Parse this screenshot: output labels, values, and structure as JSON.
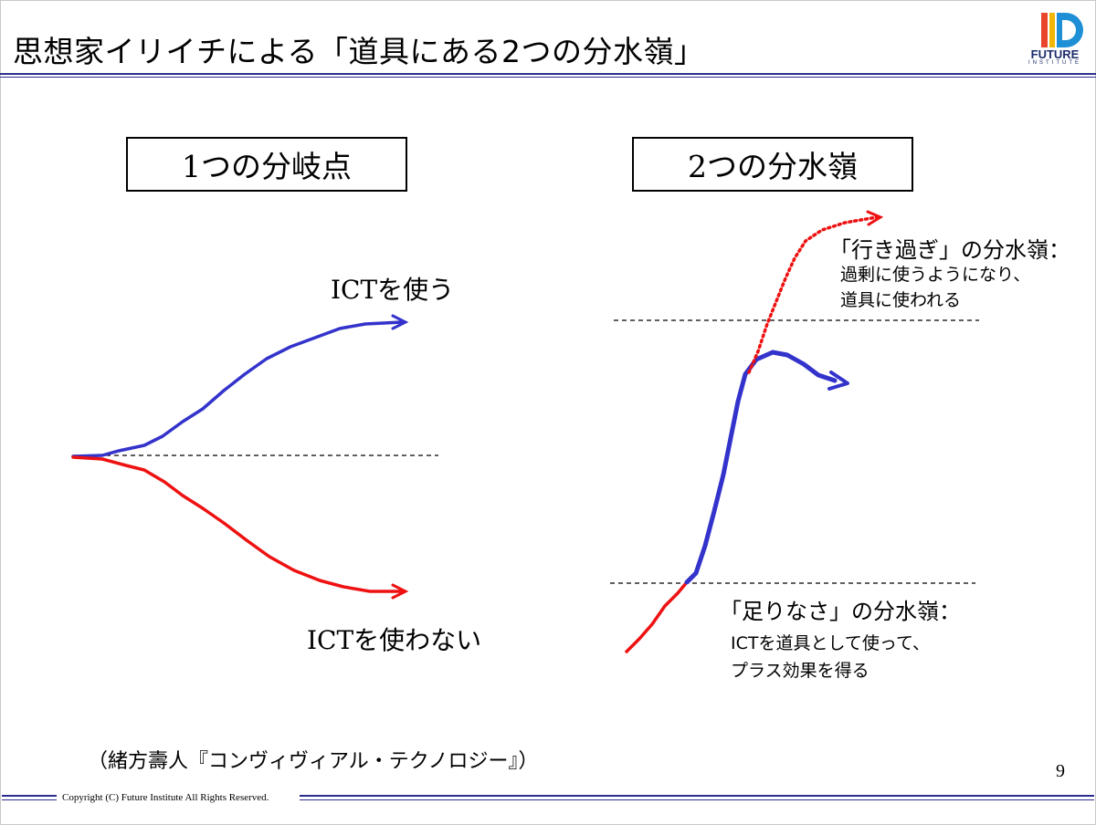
{
  "title": "思想家イリイチによる「道具にある2つの分水嶺」",
  "logo": {
    "word": "FUTURE",
    "sub": "INSTITUTE"
  },
  "left_panel": {
    "box_label": "1つの分岐点",
    "upper_label": "ICTを使う",
    "lower_label": "ICTを使わない"
  },
  "right_panel": {
    "box_label": "2つの分水嶺",
    "upper_heading": "「行き過ぎ」の分水嶺：",
    "upper_line1": "過剰に使うようになり、",
    "upper_line2": "道具に使われる",
    "lower_heading": "「足りなさ」の分水嶺：",
    "lower_line1": "ICTを道具として使って、",
    "lower_line2": "プラス効果を得る"
  },
  "source": "（緒方壽人『コンヴィヴィアル・テクノロジー』）",
  "page_number": "9",
  "copyright": "Copyright (C) Future Institute All Rights Reserved.",
  "colors": {
    "blue": "#3333cc",
    "red": "#ee1111",
    "rule": "#2b2f8c"
  }
}
